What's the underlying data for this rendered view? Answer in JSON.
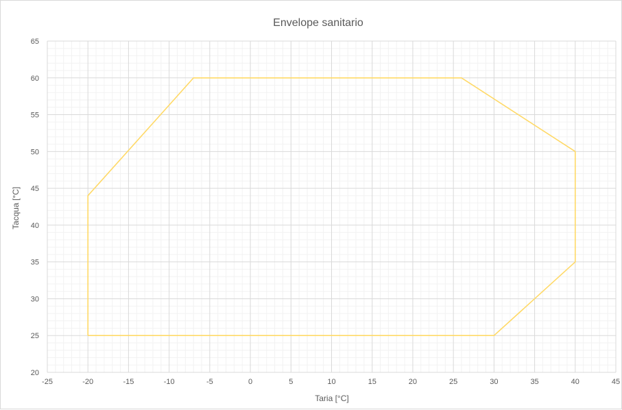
{
  "chart_data": {
    "type": "line",
    "title": "Envelope sanitario",
    "xlabel": "Taria [°C]",
    "ylabel": "Tacqua [°C]",
    "xlim": [
      -25,
      45
    ],
    "ylim": [
      20,
      65
    ],
    "x_ticks": [
      -25,
      -20,
      -15,
      -10,
      -5,
      0,
      5,
      10,
      15,
      20,
      25,
      30,
      35,
      40,
      45
    ],
    "y_ticks": [
      20,
      25,
      30,
      35,
      40,
      45,
      50,
      55,
      60,
      65
    ],
    "major_grid": true,
    "minor_grid": true,
    "legend": "none",
    "series": [
      {
        "color": "#FFD966",
        "x": [
          -20,
          -20,
          -7,
          26,
          40,
          40,
          30,
          -20
        ],
        "y": [
          25,
          44,
          60,
          60,
          50,
          35,
          25,
          25
        ]
      }
    ]
  }
}
